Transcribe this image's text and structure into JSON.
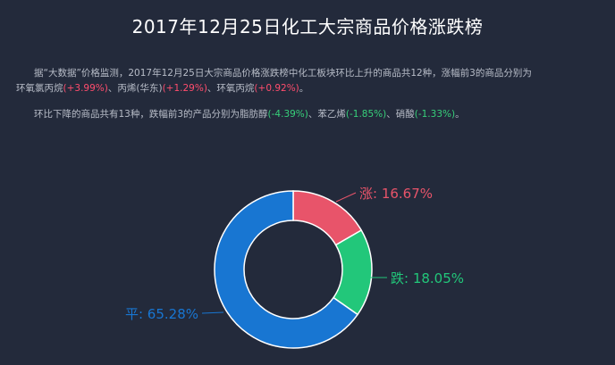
{
  "page": {
    "title": "2017年12月25日化工大宗商品价格涨跌榜"
  },
  "summary": {
    "para1_line1": "据“大数据”价格监测，2017年12月25日大宗商品价格涨跌榜中化工板块环比上升的商品共12种，涨幅前3的商品分别为",
    "top_risers": [
      {
        "name": "环氧氯丙烷",
        "change": "(+3.99%)"
      },
      {
        "name": "丙烯(华东)",
        "change": "(+1.29%)"
      },
      {
        "name": "环氧丙烷",
        "change": "(+0.92%)"
      }
    ],
    "para2_prefix": "环比下降的商品共有13种，跌幅前3的产品分别为",
    "top_fallers": [
      {
        "name": "脂肪醇",
        "change": "(-4.39%)"
      },
      {
        "name": "苯乙烯",
        "change": "(-1.85%)"
      },
      {
        "name": "硝酸",
        "change": "(-1.33%)"
      }
    ]
  },
  "chart_data": {
    "type": "pie",
    "donut": true,
    "slices": [
      {
        "label": "涨",
        "value": 16.67,
        "text": "涨: 16.67%",
        "color": "#e8546a"
      },
      {
        "label": "跌",
        "value": 18.05,
        "text": "跌: 18.05%",
        "color": "#22c77a"
      },
      {
        "label": "平",
        "value": 65.28,
        "text": "平: 65.28%",
        "color": "#1876d2"
      }
    ]
  },
  "colors": {
    "background": "#232a3b",
    "rise": "#ff4d6d",
    "fall": "#37d07a"
  }
}
